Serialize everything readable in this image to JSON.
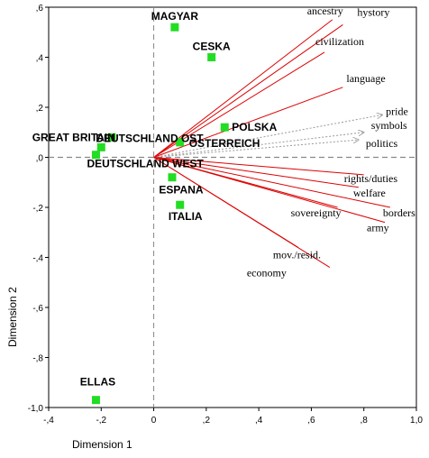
{
  "chart_data": {
    "type": "scatter",
    "xlabel": "Dimension 1",
    "ylabel": "Dimension 2",
    "xlim": [
      -0.4,
      1.0
    ],
    "ylim": [
      -1.0,
      0.6
    ],
    "x_ticks": [
      -0.4,
      -0.2,
      0,
      0.2,
      0.4,
      0.6,
      0.8,
      1.0
    ],
    "x_tick_labels": [
      "-,4",
      "-,2",
      "0",
      ",2",
      ",4",
      ",6",
      ",8",
      "1,0"
    ],
    "y_ticks": [
      0.6,
      0.4,
      0.2,
      0,
      -0.2,
      -0.4,
      -0.6,
      -0.8,
      -1.0
    ],
    "y_tick_labels": [
      ",6",
      ",4",
      ",2",
      ",0",
      "-,2",
      "-,4",
      "-,6",
      "-,8",
      "-1,0"
    ],
    "reference_lines": {
      "x": 0,
      "y": 0,
      "style": "dashed"
    },
    "countries": [
      {
        "name": "MAGYAR",
        "x": 0.08,
        "y": 0.52
      },
      {
        "name": "CESKA",
        "x": 0.22,
        "y": 0.4
      },
      {
        "name": "POLSKA",
        "x": 0.27,
        "y": 0.12
      },
      {
        "name": "ÖSTERREICH",
        "x": 0.1,
        "y": 0.06
      },
      {
        "name": "GREAT BRITAIN",
        "x": -0.16,
        "y": 0.08
      },
      {
        "name": "DEUTSCHLAND OST",
        "x": -0.2,
        "y": 0.04
      },
      {
        "name": "DEUTSCHLAND WEST",
        "x": -0.22,
        "y": 0.01
      },
      {
        "name": "ESPANA",
        "x": 0.07,
        "y": -0.08
      },
      {
        "name": "ITALIA",
        "x": 0.1,
        "y": -0.19
      },
      {
        "name": "ELLAS",
        "x": -0.22,
        "y": -0.97
      }
    ],
    "variables": [
      {
        "name": "ancestry",
        "x": 0.68,
        "y": 0.55,
        "style": "solid"
      },
      {
        "name": "hystory",
        "x": 0.72,
        "y": 0.53,
        "style": "solid"
      },
      {
        "name": "civilization",
        "x": 0.65,
        "y": 0.42,
        "style": "solid"
      },
      {
        "name": "language",
        "x": 0.72,
        "y": 0.28,
        "style": "solid"
      },
      {
        "name": "pride",
        "x": 0.87,
        "y": 0.17,
        "style": "dotted"
      },
      {
        "name": "symbols",
        "x": 0.8,
        "y": 0.1,
        "style": "dotted"
      },
      {
        "name": "politics",
        "x": 0.78,
        "y": 0.07,
        "style": "dotted"
      },
      {
        "name": "rights/duties",
        "x": 0.8,
        "y": -0.07,
        "style": "solid"
      },
      {
        "name": "welfare",
        "x": 0.78,
        "y": -0.12,
        "style": "solid"
      },
      {
        "name": "sovereignty",
        "x": 0.7,
        "y": -0.2,
        "style": "solid"
      },
      {
        "name": "borders",
        "x": 0.9,
        "y": -0.2,
        "style": "solid"
      },
      {
        "name": "army",
        "x": 0.88,
        "y": -0.26,
        "style": "solid"
      },
      {
        "name": "mov./resid.",
        "x": 0.55,
        "y": -0.36,
        "style": "solid"
      },
      {
        "name": "economy",
        "x": 0.67,
        "y": -0.44,
        "style": "solid"
      }
    ],
    "marker_color": "#22dd22",
    "vector_color": "#dd0000",
    "dotted_vector_color": "#999999",
    "grid": false
  }
}
